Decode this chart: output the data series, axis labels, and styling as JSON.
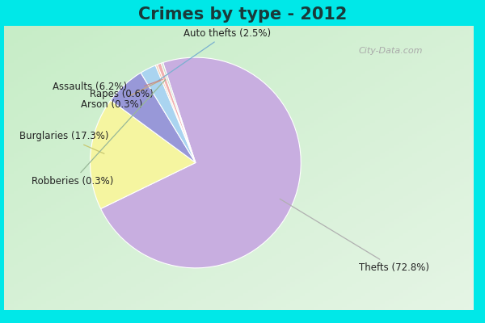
{
  "title": "Crimes by type - 2012",
  "title_fontsize": 15,
  "title_fontweight": "bold",
  "slices": [
    {
      "label": "Thefts (72.8%)",
      "value": 72.8,
      "color": "#c8aee0"
    },
    {
      "label": "Burglaries (17.3%)",
      "value": 17.3,
      "color": "#f5f5a0"
    },
    {
      "label": "Assaults (6.2%)",
      "value": 6.2,
      "color": "#9898d8"
    },
    {
      "label": "Auto thefts (2.5%)",
      "value": 2.5,
      "color": "#aad4f0"
    },
    {
      "label": "Arson (0.3%)",
      "value": 0.3,
      "color": "#f0c8a8"
    },
    {
      "label": "Rapes (0.6%)",
      "value": 0.6,
      "color": "#f0b0b0"
    },
    {
      "label": "Robberies (0.3%)",
      "value": 0.3,
      "color": "#c8dcc8"
    }
  ],
  "border_color": "#00e8e8",
  "bg_color_topleft": "#c8eec8",
  "bg_color_bottomright": "#e8f8f8",
  "label_fontsize": 8.5,
  "startangle": 108
}
